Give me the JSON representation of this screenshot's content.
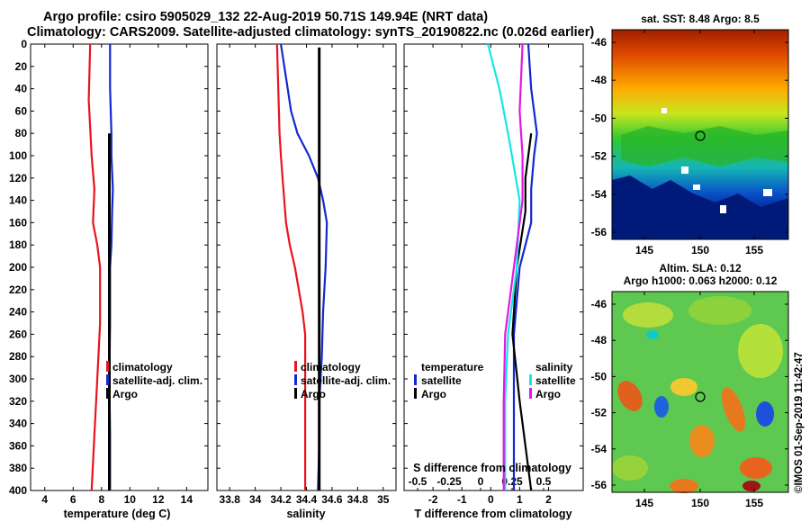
{
  "header": {
    "line1": "Argo profile: csiro 5905029_132 22-Aug-2019 50.71S 149.94E (NRT data)",
    "line2": "Climatology: CARS2009. Satellite-adjusted climatology: synTS_20190822.nc (0.026d earlier)"
  },
  "colors": {
    "climatology": "#e8141e",
    "satellite": "#1428d2",
    "argo": "#000000",
    "cyan": "#14e6e6",
    "magenta": "#e614e6"
  },
  "depth_axis": {
    "ticks": [
      0,
      20,
      40,
      60,
      80,
      100,
      120,
      140,
      160,
      180,
      200,
      220,
      240,
      260,
      280,
      300,
      320,
      340,
      360,
      380,
      400
    ],
    "range": [
      0,
      400
    ]
  },
  "chart_data": [
    {
      "type": "line",
      "id": "temperature",
      "xlabel": "temperature (deg C)",
      "xlim": [
        3,
        15.5
      ],
      "xticks": [
        4,
        6,
        8,
        10,
        12,
        14
      ],
      "legend": [
        "climatology",
        "satellite-adj. clim.",
        "Argo"
      ],
      "series": [
        {
          "name": "climatology",
          "depth": [
            0,
            50,
            100,
            130,
            160,
            180,
            200,
            250,
            300,
            350,
            400
          ],
          "values": [
            7.2,
            7.1,
            7.3,
            7.5,
            7.4,
            7.7,
            7.9,
            7.9,
            7.7,
            7.5,
            7.3
          ]
        },
        {
          "name": "satellite-adj. clim.",
          "depth": [
            0,
            40,
            80,
            100,
            130,
            150,
            180,
            200,
            250,
            300,
            350,
            400
          ],
          "values": [
            8.6,
            8.6,
            8.7,
            8.7,
            8.8,
            8.75,
            8.7,
            8.6,
            8.6,
            8.55,
            8.6,
            8.6
          ]
        },
        {
          "name": "Argo",
          "depth": [
            80,
            400
          ],
          "values": [
            8.55,
            8.55
          ]
        }
      ]
    },
    {
      "type": "line",
      "id": "salinity",
      "xlabel": "salinity",
      "xlim": [
        33.7,
        35.1
      ],
      "xticks": [
        33.8,
        34,
        34.2,
        34.4,
        34.6,
        34.8,
        35
      ],
      "legend": [
        "climatology",
        "satellite-adj. clim.",
        "Argo"
      ],
      "series": [
        {
          "name": "climatology",
          "depth": [
            0,
            40,
            80,
            100,
            130,
            160,
            180,
            200,
            220,
            240,
            260,
            300,
            340,
            400
          ],
          "values": [
            34.17,
            34.18,
            34.19,
            34.2,
            34.22,
            34.24,
            34.27,
            34.31,
            34.34,
            34.37,
            34.39,
            34.39,
            34.39,
            34.39
          ]
        },
        {
          "name": "satellite-adj. clim.",
          "depth": [
            0,
            30,
            60,
            80,
            100,
            120,
            140,
            160,
            200,
            240,
            280,
            320,
            360,
            400
          ],
          "values": [
            34.2,
            34.24,
            34.28,
            34.33,
            34.42,
            34.49,
            34.53,
            34.56,
            34.55,
            34.53,
            34.52,
            34.5,
            34.5,
            34.49
          ]
        },
        {
          "name": "Argo",
          "depth": [
            3,
            400
          ],
          "values": [
            34.5,
            34.5
          ]
        }
      ]
    },
    {
      "type": "line",
      "id": "difference",
      "xlabel": "T difference from climatology",
      "xlabel_top": "S difference from climatology",
      "xlim": [
        -3,
        3.2
      ],
      "xticks": [
        -2,
        -1,
        0,
        1,
        2
      ],
      "xticks_top": [
        "-0.5",
        "-0.25",
        "0",
        "0.25",
        "0.5"
      ],
      "legend_left_title": "temperature",
      "legend_right_title": "salinity",
      "legend_left": [
        "satellite",
        "Argo"
      ],
      "legend_right": [
        "satellite",
        "Argo"
      ],
      "series": [
        {
          "name": "T satellite",
          "depth": [
            0,
            40,
            80,
            100,
            130,
            160,
            200,
            260,
            320,
            400
          ],
          "values": [
            1.3,
            1.4,
            1.6,
            1.5,
            1.4,
            1.4,
            1.0,
            0.8,
            0.8,
            0.8
          ]
        },
        {
          "name": "T Argo",
          "depth": [
            80,
            100,
            120,
            150,
            200,
            260,
            320,
            400
          ],
          "values": [
            1.4,
            1.3,
            1.2,
            1.2,
            0.9,
            0.75,
            1.0,
            1.4
          ]
        },
        {
          "name": "S satellite",
          "depth": [
            0,
            40,
            80,
            110,
            140,
            200,
            260,
            320,
            400
          ],
          "values": [
            -0.1,
            0.3,
            0.6,
            0.8,
            1.0,
            0.9,
            0.6,
            0.5,
            0.5
          ]
        },
        {
          "name": "S Argo",
          "depth": [
            0,
            60,
            100,
            140,
            200,
            260,
            320,
            400
          ],
          "values": [
            1.1,
            1.0,
            1.1,
            1.1,
            0.8,
            0.5,
            0.45,
            0.45
          ]
        }
      ]
    }
  ],
  "maps": {
    "sst": {
      "title": "sat. SST: 8.48 Argo: 8.5",
      "yticks": [
        "-46",
        "-48",
        "-50",
        "-52",
        "-54",
        "-56"
      ],
      "xticks": [
        "145",
        "150",
        "155"
      ],
      "marker": {
        "lon": 149.94,
        "lat": -50.71
      }
    },
    "sla": {
      "title1": "Altim. SLA: 0.12",
      "title2": "Argo h1000: 0.063 h2000: 0.12",
      "yticks": [
        "-46",
        "-48",
        "-50",
        "-52",
        "-54",
        "-56"
      ],
      "xticks": [
        "145",
        "150",
        "155"
      ],
      "marker": {
        "lon": 149.94,
        "lat": -50.71
      }
    }
  },
  "credit": "©IMOS 01-Sep-2019 11:42:47"
}
